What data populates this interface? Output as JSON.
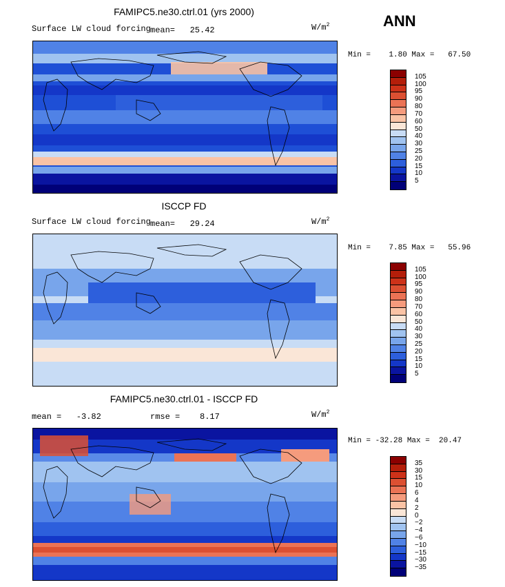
{
  "season": "ANN",
  "panels": [
    {
      "title": "FAMIPC5.ne30.ctrl.01 (yrs 2000)",
      "subtitle": "Surface LW cloud forcing",
      "stat": "mean=   25.42",
      "units": "W/m",
      "units_exp": "2",
      "minmax": "Min =    1.80 Max =   67.50",
      "colorbar_labels": [
        "105",
        "100",
        "95",
        "90",
        "80",
        "70",
        "60",
        "50",
        "40",
        "30",
        "25",
        "20",
        "15",
        "10",
        "5"
      ],
      "colorbar_colors": [
        "#8b0000",
        "#b41e0a",
        "#cd3219",
        "#dc5032",
        "#eb7355",
        "#f59b7d",
        "#fac3a5",
        "#fae6d7",
        "#c8dcf5",
        "#a0c3f0",
        "#78a5eb",
        "#5082e6",
        "#2d5fdc",
        "#1437c8",
        "#0a14a0",
        "#000078"
      ],
      "map_base": "#1e4fd6"
    },
    {
      "title": "ISCCP FD",
      "subtitle": "Surface LW cloud forcing",
      "stat": "mean=   29.24",
      "units": "W/m",
      "units_exp": "2",
      "minmax": "Min =    7.85 Max =   55.96",
      "colorbar_labels": [
        "105",
        "100",
        "95",
        "90",
        "80",
        "70",
        "60",
        "50",
        "40",
        "30",
        "25",
        "20",
        "15",
        "10",
        "5"
      ],
      "colorbar_colors": [
        "#8b0000",
        "#b41e0a",
        "#cd3219",
        "#dc5032",
        "#eb7355",
        "#f59b7d",
        "#fac3a5",
        "#fae6d7",
        "#c8dcf5",
        "#a0c3f0",
        "#78a5eb",
        "#5082e6",
        "#2d5fdc",
        "#1437c8",
        "#0a14a0",
        "#000078"
      ],
      "map_base": "#8fb7ee"
    },
    {
      "title": "FAMIPC5.ne30.ctrl.01 - ISCCP FD",
      "subtitle": "mean =   -3.82",
      "stat": "rmse =    8.17",
      "units": "W/m",
      "units_exp": "2",
      "minmax": "Min = -32.28 Max =  20.47",
      "colorbar_labels": [
        "35",
        "30",
        "15",
        "10",
        "6",
        "4",
        "2",
        "0",
        "−2",
        "−4",
        "−6",
        "−10",
        "−15",
        "−30",
        "−35"
      ],
      "colorbar_colors": [
        "#8b0000",
        "#b41e0a",
        "#cd3219",
        "#dc5032",
        "#eb7355",
        "#f59b7d",
        "#fac3a5",
        "#fae6d7",
        "#c8dcf5",
        "#a0c3f0",
        "#78a5eb",
        "#5082e6",
        "#2d5fdc",
        "#1437c8",
        "#0a14a0",
        "#000078"
      ],
      "map_base": "#5a8ae8"
    }
  ]
}
